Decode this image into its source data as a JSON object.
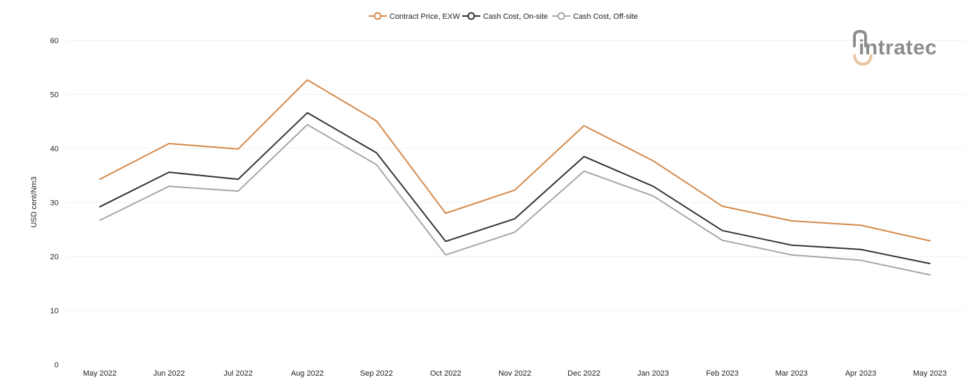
{
  "chart_data": {
    "type": "line",
    "title": "",
    "xlabel": "",
    "ylabel": "USD cent/Nm3",
    "ylim": [
      0,
      60
    ],
    "yticks": [
      0,
      10,
      20,
      30,
      40,
      50,
      60
    ],
    "grid": true,
    "legend_position": "top-center",
    "categories": [
      "May 2022",
      "Jun 2022",
      "Jul 2022",
      "Aug 2022",
      "Sep 2022",
      "Oct 2022",
      "Nov 2022",
      "Dec 2022",
      "Jan 2023",
      "Feb 2023",
      "Mar 2023",
      "Apr 2023",
      "May 2023"
    ],
    "series": [
      {
        "name": "Contract Price, EXW",
        "color": "#d4894a",
        "values": [
          34.3,
          40.9,
          39.9,
          52.7,
          45.1,
          28.0,
          32.3,
          44.2,
          37.7,
          29.3,
          26.6,
          25.8,
          22.9
        ]
      },
      {
        "name": "Cash Cost, On-site",
        "color": "#333333",
        "values": [
          29.2,
          35.6,
          34.3,
          46.6,
          39.2,
          22.8,
          27.0,
          38.5,
          33.0,
          24.8,
          22.1,
          21.3,
          18.7
        ]
      },
      {
        "name": "Cash Cost, Off-site",
        "color": "#a6a6a6",
        "values": [
          26.7,
          33.0,
          32.1,
          44.4,
          37.0,
          20.3,
          24.5,
          35.8,
          31.2,
          23.0,
          20.3,
          19.3,
          16.6
        ]
      }
    ]
  },
  "logo": {
    "text": "intratec",
    "icon": "intratec-logo-icon",
    "icon_color": "#e8c4a0",
    "text_color": "#8c8c8c"
  },
  "colors": {
    "grid": "#f0f0f0",
    "background": "#ffffff"
  }
}
